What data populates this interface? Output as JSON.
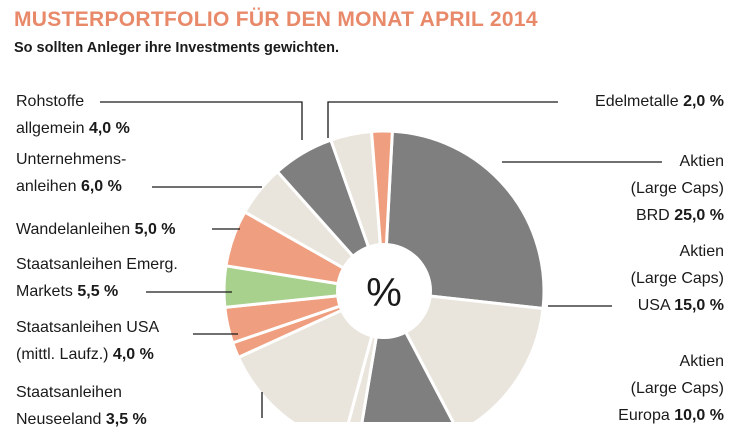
{
  "title": "MUSTERPORTFOLIO FÜR DEN MONAT APRIL 2014",
  "subtitle": "So sollten Anleger ihre Investments gewichten.",
  "center_symbol": "%",
  "colors": {
    "accent": "#e8896a",
    "dark_gray": "#7f7f7f",
    "light_beige": "#e9e5dc",
    "salmon": "#ef9f7f",
    "green": "#a9d18e"
  },
  "labels": {
    "rohstoffe_l1": "Rohstoffe",
    "rohstoffe_l2": "allgemein",
    "rohstoffe_val": "4,0 %",
    "unternehmens_l1": "Unternehmens-",
    "unternehmens_l2": "anleihen",
    "unternehmens_val": "6,0 %",
    "wandel": "Wandelanleihen",
    "wandel_val": "5,0 %",
    "emerg_l1": "Staatsanleihen Emerg.",
    "emerg_l2": "Markets",
    "emerg_val": "5,5 %",
    "usa_l1": "Staatsanleihen USA",
    "usa_l2": "(mittl. Laufz.)",
    "usa_val": "4,0 %",
    "neuseeland_l1": "Staatsanleihen",
    "neuseeland_l2": "Neuseeland",
    "neuseeland_val": "3,5 %",
    "edel": "Edelmetalle",
    "edel_val": "2,0 %",
    "brd_l1": "Aktien",
    "brd_l2": "(Large Caps)",
    "brd_l3": "BRD",
    "brd_val": "25,0 %",
    "usa_akt_l1": "Aktien",
    "usa_akt_l2": "(Large Caps)",
    "usa_akt_l3": "USA",
    "usa_akt_val": "15,0 %",
    "europa_l1": "Aktien",
    "europa_l2": "(Large Caps)",
    "europa_l3": "Europa",
    "europa_val": "10,0 %"
  },
  "chart_data": {
    "type": "pie",
    "title": "MUSTERPORTFOLIO FÜR DEN MONAT APRIL 2014",
    "subtitle": "So sollten Anleger ihre Investments gewichten.",
    "unit": "%",
    "donut": true,
    "slices": [
      {
        "label": "Aktien (Large Caps) BRD",
        "value": 25.0,
        "color": "#7f7f7f"
      },
      {
        "label": "Aktien (Large Caps) USA",
        "value": 15.0,
        "color": "#e9e5dc"
      },
      {
        "label": "Aktien (Large Caps) Europa",
        "value": 10.0,
        "color": "#7f7f7f"
      },
      {
        "label": "",
        "value": 1.5,
        "color": "#e9e5dc"
      },
      {
        "label": "",
        "value": 13.5,
        "color": "#e9e5dc"
      },
      {
        "label": "",
        "value": 1.5,
        "color": "#ef9f7f"
      },
      {
        "label": "Staatsanleihen Neuseeland",
        "value": 3.5,
        "color": "#ef9f7f"
      },
      {
        "label": "Staatsanleihen USA (mittl. Laufz.)",
        "value": 4.0,
        "color": "#a9d18e"
      },
      {
        "label": "Staatsanleihen Emerg. Markets",
        "value": 5.5,
        "color": "#ef9f7f"
      },
      {
        "label": "Wandelanleihen",
        "value": 5.0,
        "color": "#e9e5dc"
      },
      {
        "label": "Unternehmensanleihen",
        "value": 6.0,
        "color": "#7f7f7f"
      },
      {
        "label": "Rohstoffe allgemein",
        "value": 4.0,
        "color": "#e9e5dc"
      },
      {
        "label": "Edelmetalle",
        "value": 2.0,
        "color": "#ef9f7f"
      }
    ]
  }
}
